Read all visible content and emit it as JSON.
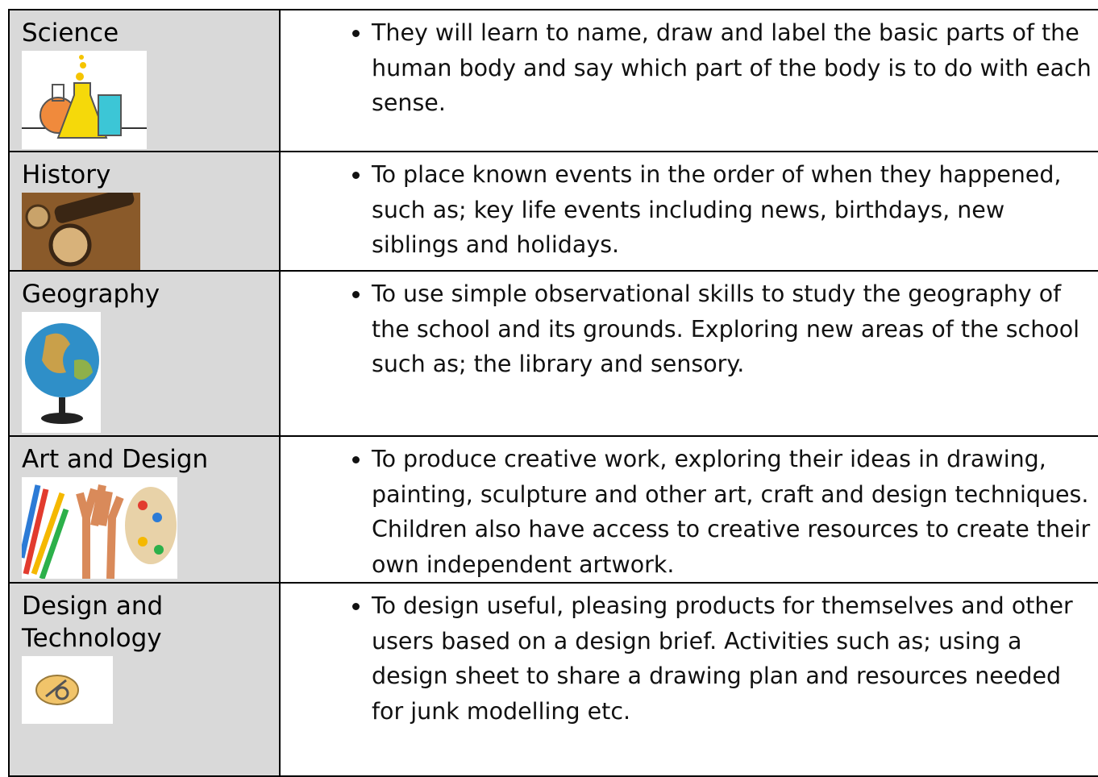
{
  "table": {
    "rows": [
      {
        "subject": "Science",
        "description": "They will learn to name, draw and label the basic parts of the human body and say which part of the body is to do with each sense."
      },
      {
        "subject": "History",
        "description": "To place known events in the order of when they happened, such as; key life events including news, birthdays, new siblings and holidays."
      },
      {
        "subject": "Geography",
        "description": "To use simple observational skills to study the geography of the school and its grounds. Exploring new areas of the school such as; the library and sensory."
      },
      {
        "subject": "Art and Design",
        "description": "To produce creative work, exploring their ideas in drawing, painting, sculpture and other art, craft and design techniques. Children also have access to creative resources to create their own independent artwork."
      },
      {
        "subject": "Design and Technology",
        "description": "To design useful, pleasing products for themselves and other users based on a design brief. Activities such as; using a design sheet to share a drawing plan and resources needed for junk modelling etc."
      }
    ]
  }
}
